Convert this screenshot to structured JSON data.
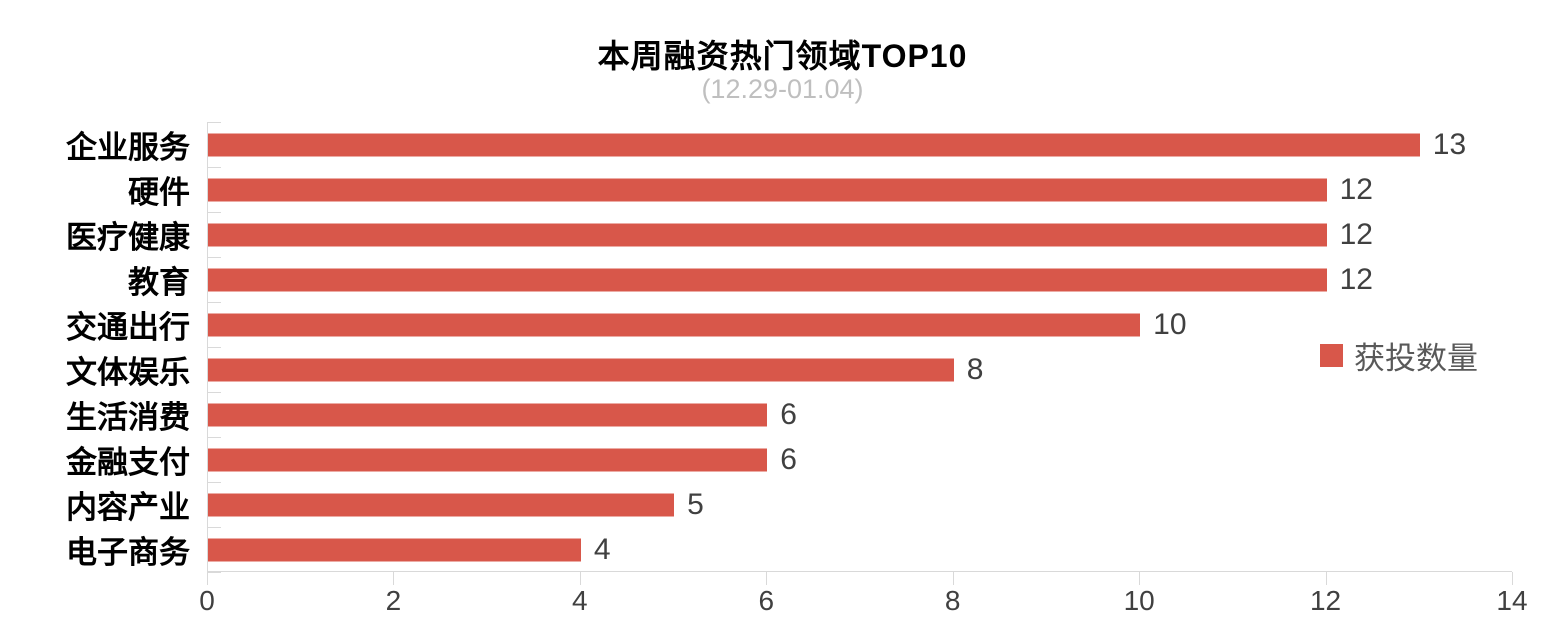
{
  "page": {
    "background": "#FFFFFF"
  },
  "colors": {
    "bar": "#D8574A",
    "axis": "#D9D9D9",
    "title": "#000000",
    "subtitle": "#BFBFBF",
    "category_label": "#000000",
    "value_label": "#404040",
    "x_tick_label": "#404040",
    "legend_text": "#595959"
  },
  "legend": {
    "marker": "red-square-swatch",
    "label": "获投数量"
  },
  "chart_data": {
    "type": "bar",
    "orientation": "horizontal",
    "title": "本周融资热门领域TOP10",
    "subtitle": "(12.29-01.04)",
    "categories": [
      "企业服务",
      "硬件",
      "医疗健康",
      "教育",
      "交通出行",
      "文体娱乐",
      "生活消费",
      "金融支付",
      "内容产业",
      "电子商务"
    ],
    "values": [
      13,
      12,
      12,
      12,
      10,
      8,
      6,
      6,
      5,
      4
    ],
    "series": [
      {
        "name": "获投数量",
        "values": [
          13,
          12,
          12,
          12,
          10,
          8,
          6,
          6,
          5,
          4
        ]
      }
    ],
    "series_name": "获投数量",
    "xlabel": "",
    "ylabel": "",
    "xlim": [
      0,
      14
    ],
    "x_ticks": [
      0,
      2,
      4,
      6,
      8,
      10,
      12,
      14
    ],
    "grid": false,
    "data_labels": true,
    "legend_position": "center-right",
    "y_axis_tick_style": "inside",
    "x_axis_tick_style": "outside"
  }
}
